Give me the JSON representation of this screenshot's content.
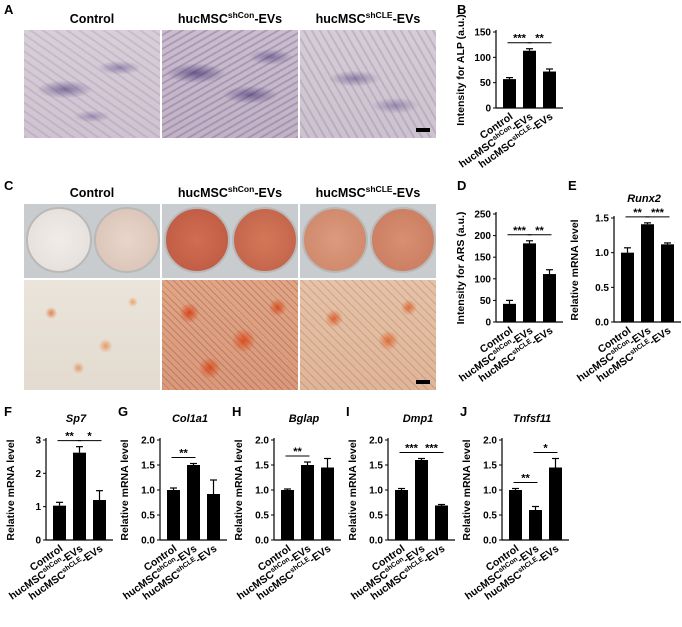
{
  "panels": {
    "A": "A",
    "B": "B",
    "C": "C",
    "D": "D",
    "E": "E",
    "F": "F",
    "G": "G",
    "H": "H",
    "I": "I",
    "J": "J"
  },
  "column_headers": {
    "control": "Control",
    "shcon_base": "hucMSC",
    "shcon_sup": "shCon",
    "shcon_suffix": "-EVs",
    "shcle_base": "hucMSC",
    "shcle_sup": "shCLE",
    "shcle_suffix": "-EVs"
  },
  "colors": {
    "bar": "#000000",
    "background": "#ffffff"
  },
  "chart_data": [
    {
      "id": "B",
      "type": "bar",
      "ylabel": "Intensity for ALP (a.u.)",
      "categories": [
        "Control",
        "hucMSC^shCon-EVs",
        "hucMSC^shCLE-EVs"
      ],
      "values": [
        57,
        113,
        72
      ],
      "errors": [
        3,
        4,
        5
      ],
      "ylim": [
        0,
        150
      ],
      "yticks": [
        0,
        50,
        100,
        150
      ],
      "significance": [
        {
          "pair": [
            0,
            1
          ],
          "label": "***"
        },
        {
          "pair": [
            1,
            2
          ],
          "label": "**"
        }
      ]
    },
    {
      "id": "D",
      "type": "bar",
      "ylabel": "Intensity for ARS (a.u.)",
      "categories": [
        "Control",
        "hucMSC^shCon-EVs",
        "hucMSC^shCLE-EVs"
      ],
      "values": [
        42,
        182,
        111
      ],
      "errors": [
        8,
        6,
        10
      ],
      "ylim": [
        0,
        250
      ],
      "yticks": [
        0,
        50,
        100,
        150,
        200,
        250
      ],
      "significance": [
        {
          "pair": [
            0,
            1
          ],
          "label": "***"
        },
        {
          "pair": [
            1,
            2
          ],
          "label": "**"
        }
      ]
    },
    {
      "id": "E",
      "type": "bar",
      "title": "Runx2",
      "ylabel": "Relative mRNA level",
      "categories": [
        "Control",
        "hucMSC^shCon-EVs",
        "hucMSC^shCLE-EVs"
      ],
      "values": [
        1.0,
        1.41,
        1.12
      ],
      "errors": [
        0.07,
        0.02,
        0.02
      ],
      "ylim": [
        0,
        1.5
      ],
      "yticks": [
        0.0,
        0.5,
        1.0,
        1.5
      ],
      "significance": [
        {
          "pair": [
            0,
            1
          ],
          "label": "**"
        },
        {
          "pair": [
            1,
            2
          ],
          "label": "***"
        }
      ]
    },
    {
      "id": "F",
      "type": "bar",
      "title": "Sp7",
      "ylabel": "Relative mRNA level",
      "categories": [
        "Control",
        "hucMSC^shCon-EVs",
        "hucMSC^shCLE-EVs"
      ],
      "values": [
        1.03,
        2.62,
        1.2
      ],
      "errors": [
        0.1,
        0.18,
        0.28
      ],
      "ylim": [
        0,
        3
      ],
      "yticks": [
        0,
        1,
        2,
        3
      ],
      "significance": [
        {
          "pair": [
            0,
            1
          ],
          "label": "**"
        },
        {
          "pair": [
            1,
            2
          ],
          "label": "*"
        }
      ]
    },
    {
      "id": "G",
      "type": "bar",
      "title": "Col1a1",
      "ylabel": "Relative mRNA level",
      "categories": [
        "Control",
        "hucMSC^shCon-EVs",
        "hucMSC^shCLE-EVs"
      ],
      "values": [
        1.0,
        1.5,
        0.92
      ],
      "errors": [
        0.04,
        0.03,
        0.28
      ],
      "ylim": [
        0,
        2.0
      ],
      "yticks": [
        0.0,
        0.5,
        1.0,
        1.5,
        2.0
      ],
      "significance": [
        {
          "pair": [
            0,
            1
          ],
          "label": "**"
        }
      ]
    },
    {
      "id": "H",
      "type": "bar",
      "title": "Bglap",
      "ylabel": "Relative mRNA level",
      "categories": [
        "Control",
        "hucMSC^shCon-EVs",
        "hucMSC^shCLE-EVs"
      ],
      "values": [
        1.0,
        1.5,
        1.45
      ],
      "errors": [
        0.02,
        0.06,
        0.18
      ],
      "ylim": [
        0,
        2.0
      ],
      "yticks": [
        0.0,
        0.5,
        1.0,
        1.5,
        2.0
      ],
      "significance": [
        {
          "pair": [
            0,
            1
          ],
          "label": "**"
        }
      ]
    },
    {
      "id": "I",
      "type": "bar",
      "title": "Dmp1",
      "ylabel": "Relative mRNA level",
      "categories": [
        "Control",
        "hucMSC^shCon-EVs",
        "hucMSC^shCLE-EVs"
      ],
      "values": [
        1.0,
        1.6,
        0.69
      ],
      "errors": [
        0.03,
        0.03,
        0.02
      ],
      "ylim": [
        0,
        2.0
      ],
      "yticks": [
        0.0,
        0.5,
        1.0,
        1.5,
        2.0
      ],
      "significance": [
        {
          "pair": [
            0,
            1
          ],
          "label": "***"
        },
        {
          "pair": [
            1,
            2
          ],
          "label": "***"
        }
      ]
    },
    {
      "id": "J",
      "type": "bar",
      "title": "Tnfsf11",
      "ylabel": "Relative mRNA level",
      "categories": [
        "Control",
        "hucMSC^shCon-EVs",
        "hucMSC^shCLE-EVs"
      ],
      "values": [
        1.0,
        0.6,
        1.45
      ],
      "errors": [
        0.03,
        0.07,
        0.18
      ],
      "ylim": [
        0,
        2.0
      ],
      "yticks": [
        0.0,
        0.5,
        1.0,
        1.5,
        2.0
      ],
      "significance": [
        {
          "pair": [
            0,
            1
          ],
          "label": "**"
        },
        {
          "pair": [
            1,
            2
          ],
          "label": "*"
        }
      ]
    }
  ]
}
